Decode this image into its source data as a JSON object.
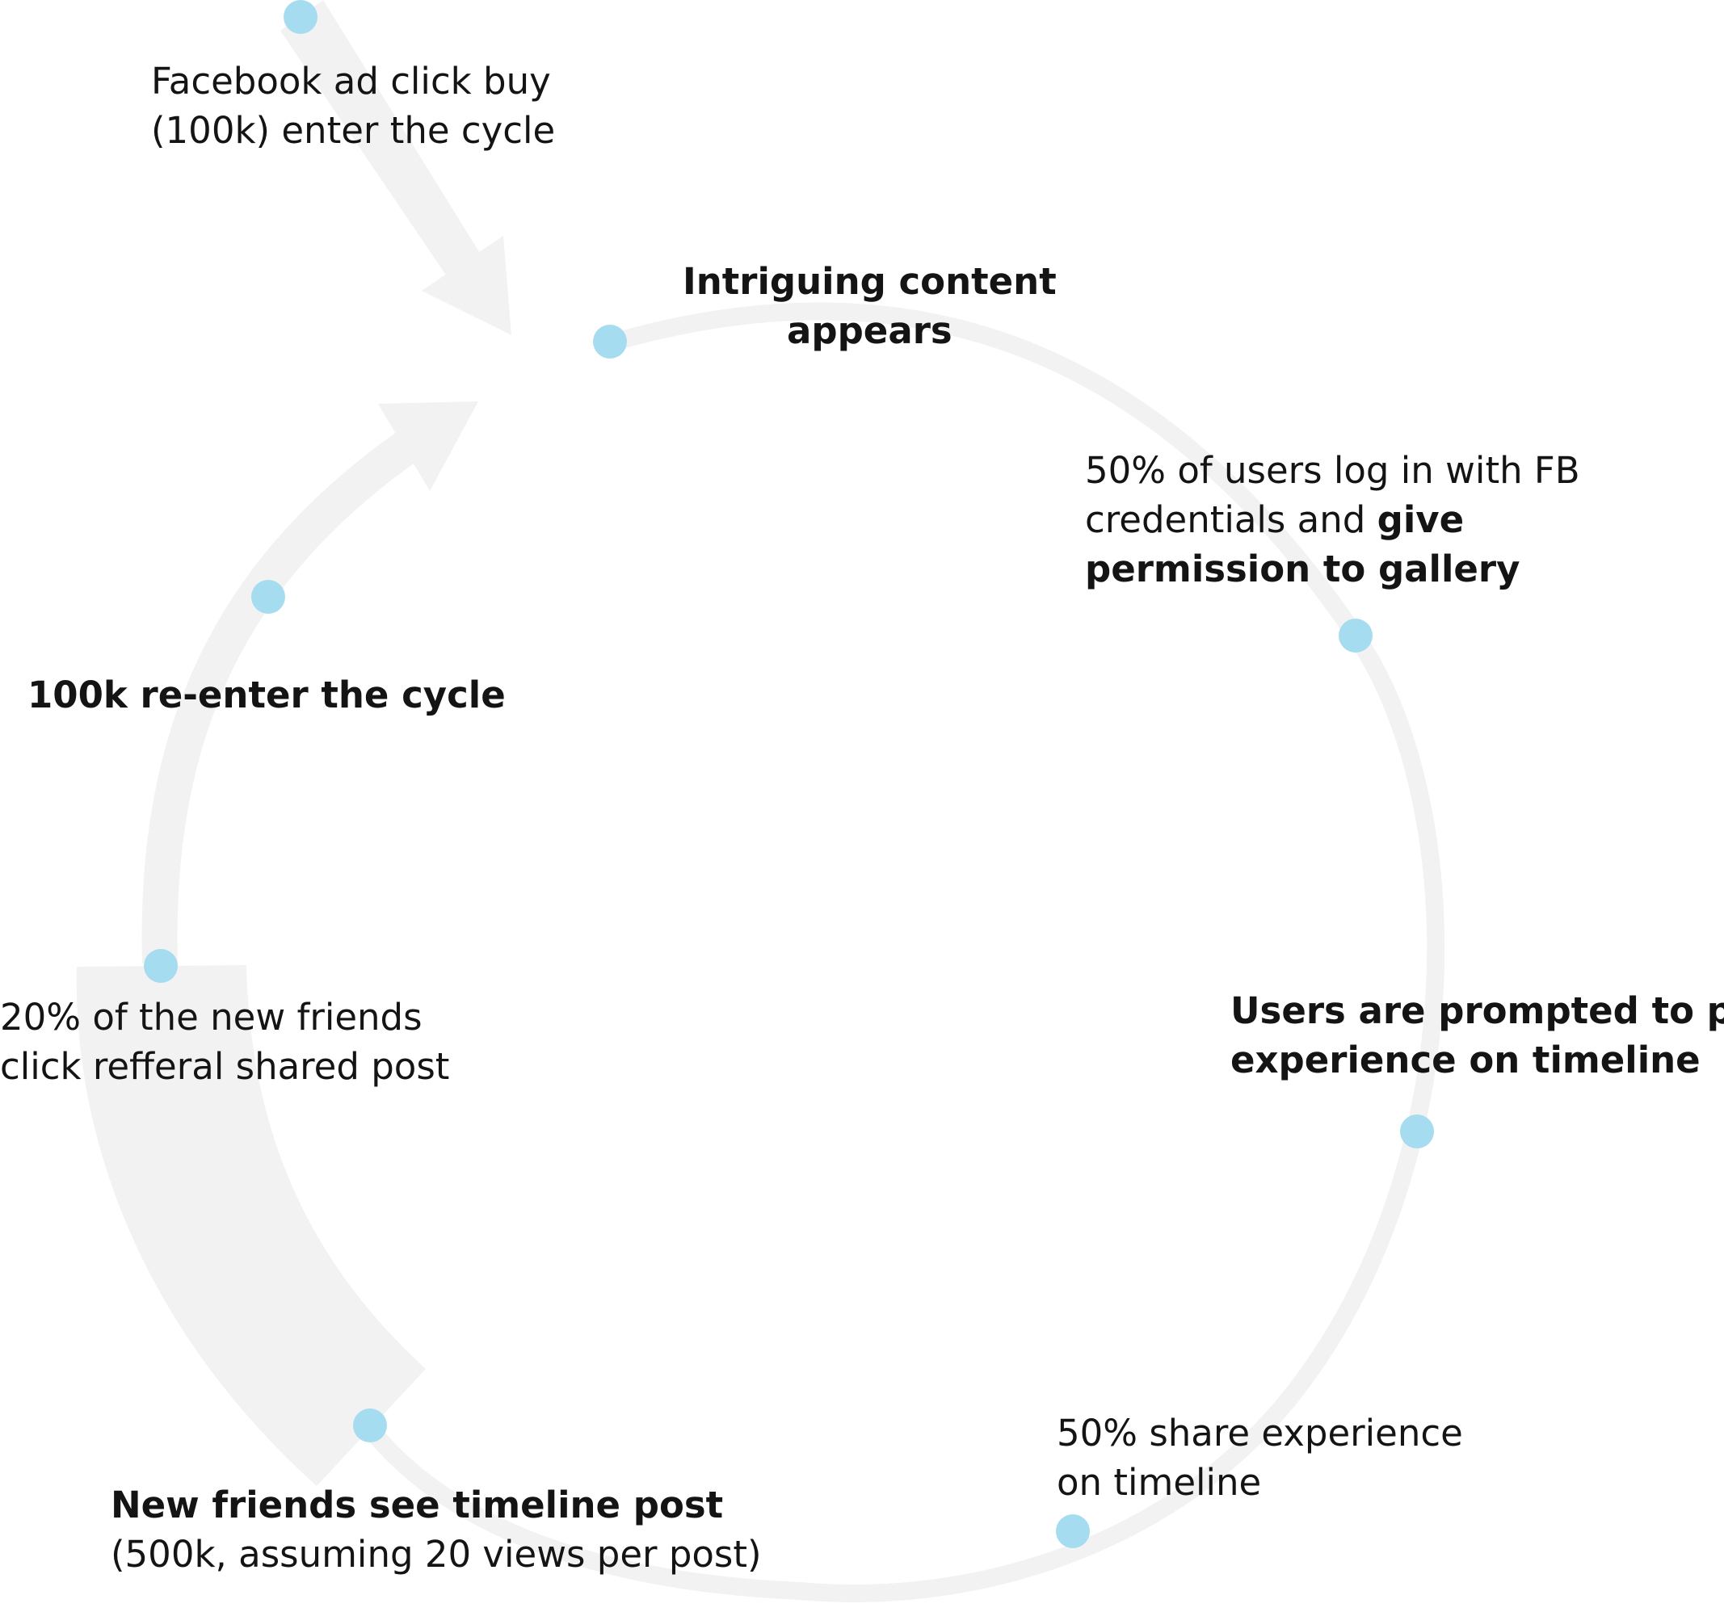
{
  "colors": {
    "track": "#f2f2f2",
    "node": "#a6dcf0",
    "text": "#141414"
  },
  "labels": {
    "entry": {
      "lines": [
        "Facebook ad click buy",
        "(100k) enter the cycle"
      ]
    },
    "intriguing": {
      "lines": [
        "Intriguing content",
        "appears"
      ]
    },
    "login": {
      "line1": "50% of users log in with FB",
      "line2_regular": "credentials and ",
      "line2_bold": "give",
      "line3": "permission to gallery"
    },
    "prompted": {
      "lines": [
        "Users are prompted to post",
        "experience on timeline"
      ]
    },
    "share": {
      "lines": [
        "50%  share experience",
        "on timeline"
      ]
    },
    "newfriends": {
      "bold": "New friends see timeline post",
      "regular": "(500k, assuming 20 views per post)"
    },
    "referral": {
      "lines": [
        "20% of the new friends",
        "click  refferal shared post"
      ]
    },
    "reenter": {
      "text": "100k re-enter the cycle"
    }
  }
}
